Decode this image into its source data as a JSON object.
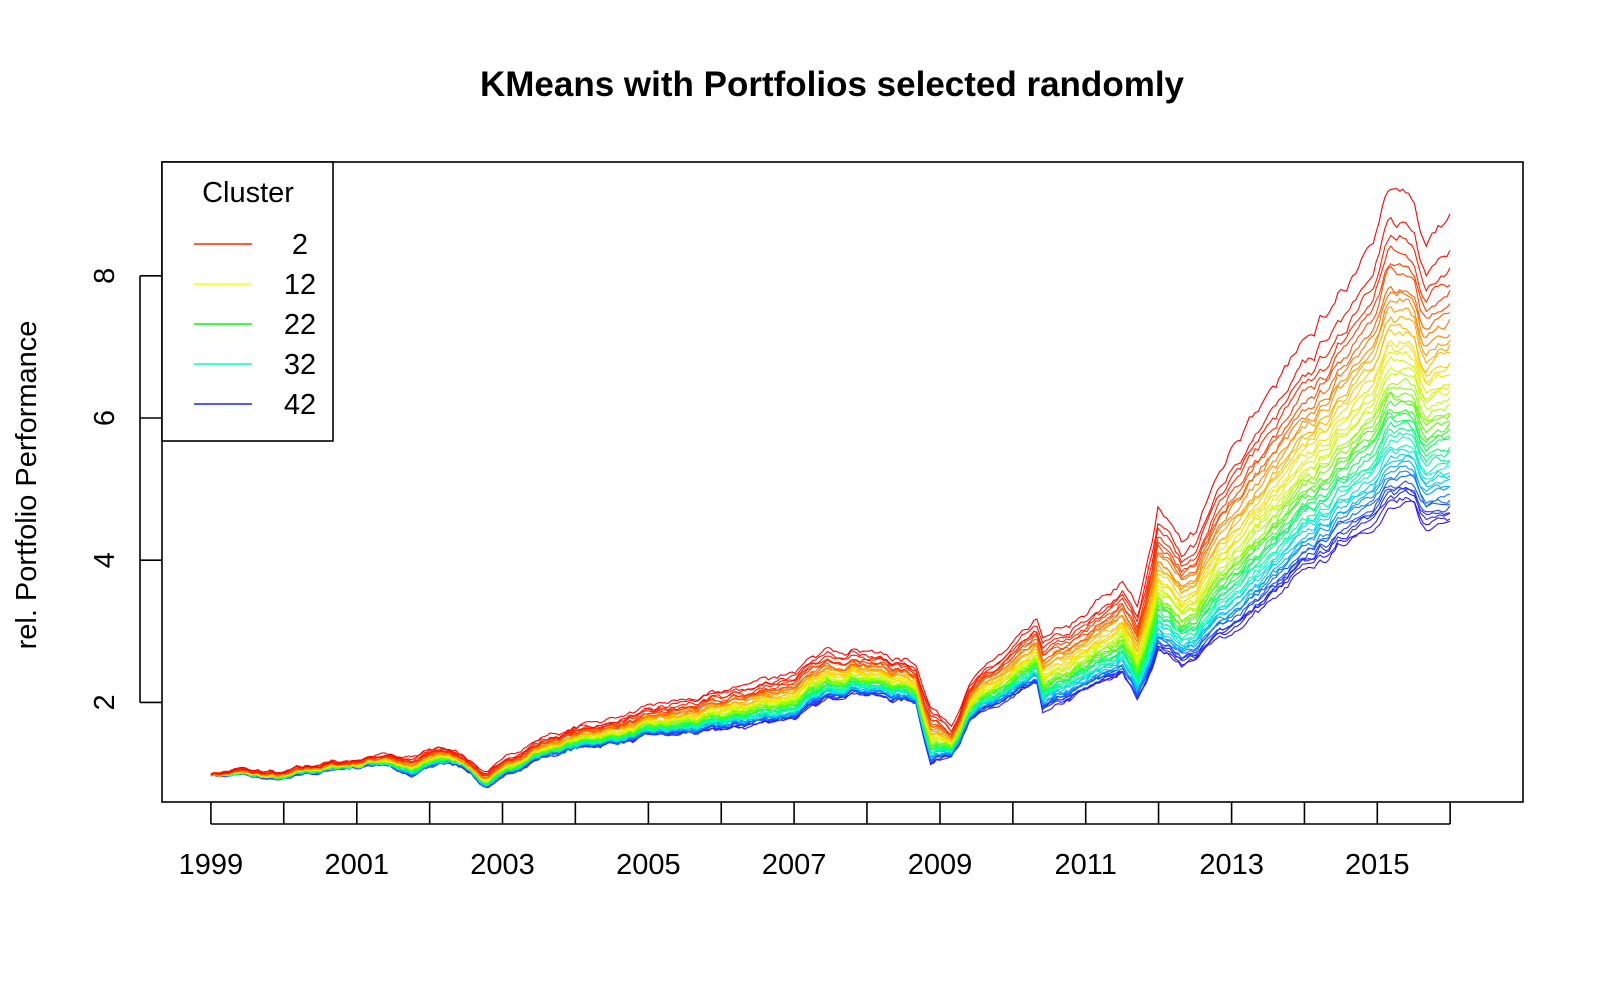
{
  "chart_data": {
    "type": "line",
    "title": "KMeans with Portfolios selected randomly",
    "xlabel": "",
    "ylabel": "rel. Portfolio Performance",
    "xlim": [
      "1998-05-01",
      "2016-12-31"
    ],
    "ylim": [
      0.6,
      9.6
    ],
    "x_tick_labels": [
      "1999",
      "2001",
      "2003",
      "2005",
      "2007",
      "2009",
      "2011",
      "2013",
      "2015"
    ],
    "y_tick_labels": [
      "2",
      "4",
      "6",
      "8"
    ],
    "grid": false,
    "legend": {
      "title": "Cluster",
      "placement": "top-left",
      "entries": [
        {
          "label": "2",
          "color": "#FF2A00"
        },
        {
          "label": "12",
          "color": "#FFFF00"
        },
        {
          "label": "22",
          "color": "#00FF00"
        },
        {
          "label": "32",
          "color": "#00FFD5"
        },
        {
          "label": "42",
          "color": "#2020FF"
        }
      ]
    },
    "line_count": 45,
    "color_scale": [
      "#FF0000",
      "#FF4000",
      "#FF9900",
      "#FFE000",
      "#C8FF00",
      "#55FF00",
      "#00FF66",
      "#00FFCC",
      "#00B0FF",
      "#2040FF",
      "#3010FF"
    ],
    "series_envelope": {
      "x": [
        "1999-01-01",
        "1999-06-01",
        "2000-01-01",
        "2000-06-01",
        "2001-01-01",
        "2001-06-01",
        "2001-10-01",
        "2002-03-01",
        "2002-07-01",
        "2002-10-01",
        "2003-01-01",
        "2003-06-01",
        "2004-01-01",
        "2005-01-01",
        "2006-01-01",
        "2007-01-01",
        "2007-06-01",
        "2007-11-01",
        "2008-05-01",
        "2008-09-01",
        "2008-11-15",
        "2009-03-01",
        "2009-06-01",
        "2010-01-01",
        "2010-05-01",
        "2010-06-01",
        "2011-01-01",
        "2011-07-01",
        "2011-09-20",
        "2012-01-01",
        "2012-05-01",
        "2012-07-01",
        "2013-01-01",
        "2014-01-01",
        "2014-07-01",
        "2015-01-01",
        "2015-03-01",
        "2015-07-01",
        "2015-09-01",
        "2015-12-31"
      ],
      "top": [
        1.0,
        1.05,
        1.0,
        1.12,
        1.2,
        1.3,
        1.2,
        1.38,
        1.25,
        1.02,
        1.15,
        1.45,
        1.65,
        1.9,
        2.15,
        2.45,
        2.7,
        2.8,
        2.65,
        2.55,
        1.95,
        1.7,
        2.3,
        2.8,
        3.1,
        2.9,
        3.2,
        3.7,
        3.3,
        4.8,
        4.3,
        4.4,
        5.6,
        7.0,
        7.7,
        8.8,
        9.3,
        8.95,
        8.4,
        8.9
      ],
      "bottom": [
        1.0,
        0.98,
        0.9,
        1.02,
        1.1,
        1.15,
        0.95,
        1.15,
        1.1,
        0.82,
        0.92,
        1.2,
        1.35,
        1.5,
        1.6,
        1.8,
        2.0,
        2.18,
        2.05,
        2.0,
        1.15,
        1.3,
        1.75,
        2.05,
        2.2,
        1.85,
        2.15,
        2.4,
        2.0,
        2.75,
        2.55,
        2.6,
        3.0,
        3.8,
        4.2,
        4.6,
        4.75,
        4.7,
        4.4,
        4.6
      ]
    }
  }
}
